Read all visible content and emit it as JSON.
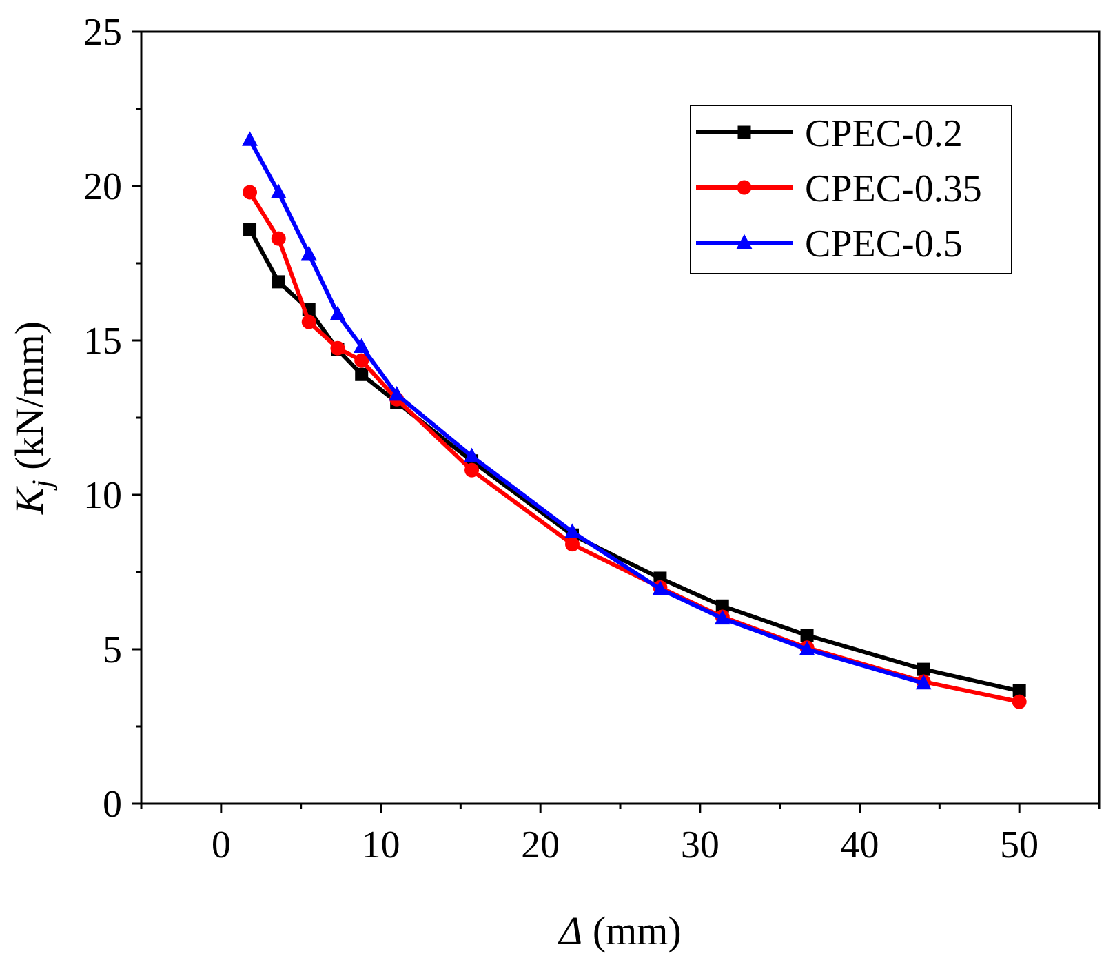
{
  "chart_data": {
    "type": "line",
    "title": "",
    "xlabel_symbol": "Δ",
    "xlabel_unit": " (mm)",
    "ylabel_symbol": "K",
    "ylabel_sub": "j",
    "ylabel_unit": " (kN/mm)",
    "xlim": [
      -5,
      55
    ],
    "ylim": [
      0,
      25
    ],
    "x_ticks": [
      0,
      10,
      20,
      30,
      40,
      50
    ],
    "y_ticks": [
      0,
      5,
      10,
      15,
      20,
      25
    ],
    "legend_position": "top-right",
    "series": [
      {
        "name": "CPEC-0.2",
        "color": "#000000",
        "marker": "square",
        "x": [
          1.8,
          3.6,
          5.5,
          7.3,
          8.8,
          11.0,
          15.7,
          22.0,
          27.5,
          31.4,
          36.7,
          44.0,
          50.0
        ],
        "y": [
          18.6,
          16.9,
          16.0,
          14.7,
          13.9,
          13.0,
          11.1,
          8.7,
          7.3,
          6.4,
          5.45,
          4.35,
          3.65
        ]
      },
      {
        "name": "CPEC-0.35",
        "color": "#ff0000",
        "marker": "circle",
        "x": [
          1.8,
          3.6,
          5.5,
          7.3,
          8.8,
          11.0,
          15.7,
          22.0,
          27.5,
          31.4,
          36.7,
          44.0,
          50.0
        ],
        "y": [
          19.8,
          18.3,
          15.6,
          14.75,
          14.35,
          13.1,
          10.8,
          8.4,
          7.0,
          6.05,
          5.05,
          3.95,
          3.3
        ]
      },
      {
        "name": "CPEC-0.5",
        "color": "#0000ff",
        "marker": "triangle",
        "x": [
          1.8,
          3.6,
          5.5,
          7.3,
          8.8,
          11.0,
          15.7,
          22.0,
          27.5,
          31.4,
          36.7,
          44.0
        ],
        "y": [
          21.5,
          19.8,
          17.8,
          15.85,
          14.8,
          13.25,
          11.25,
          8.8,
          6.95,
          6.0,
          5.0,
          3.9
        ]
      }
    ]
  }
}
